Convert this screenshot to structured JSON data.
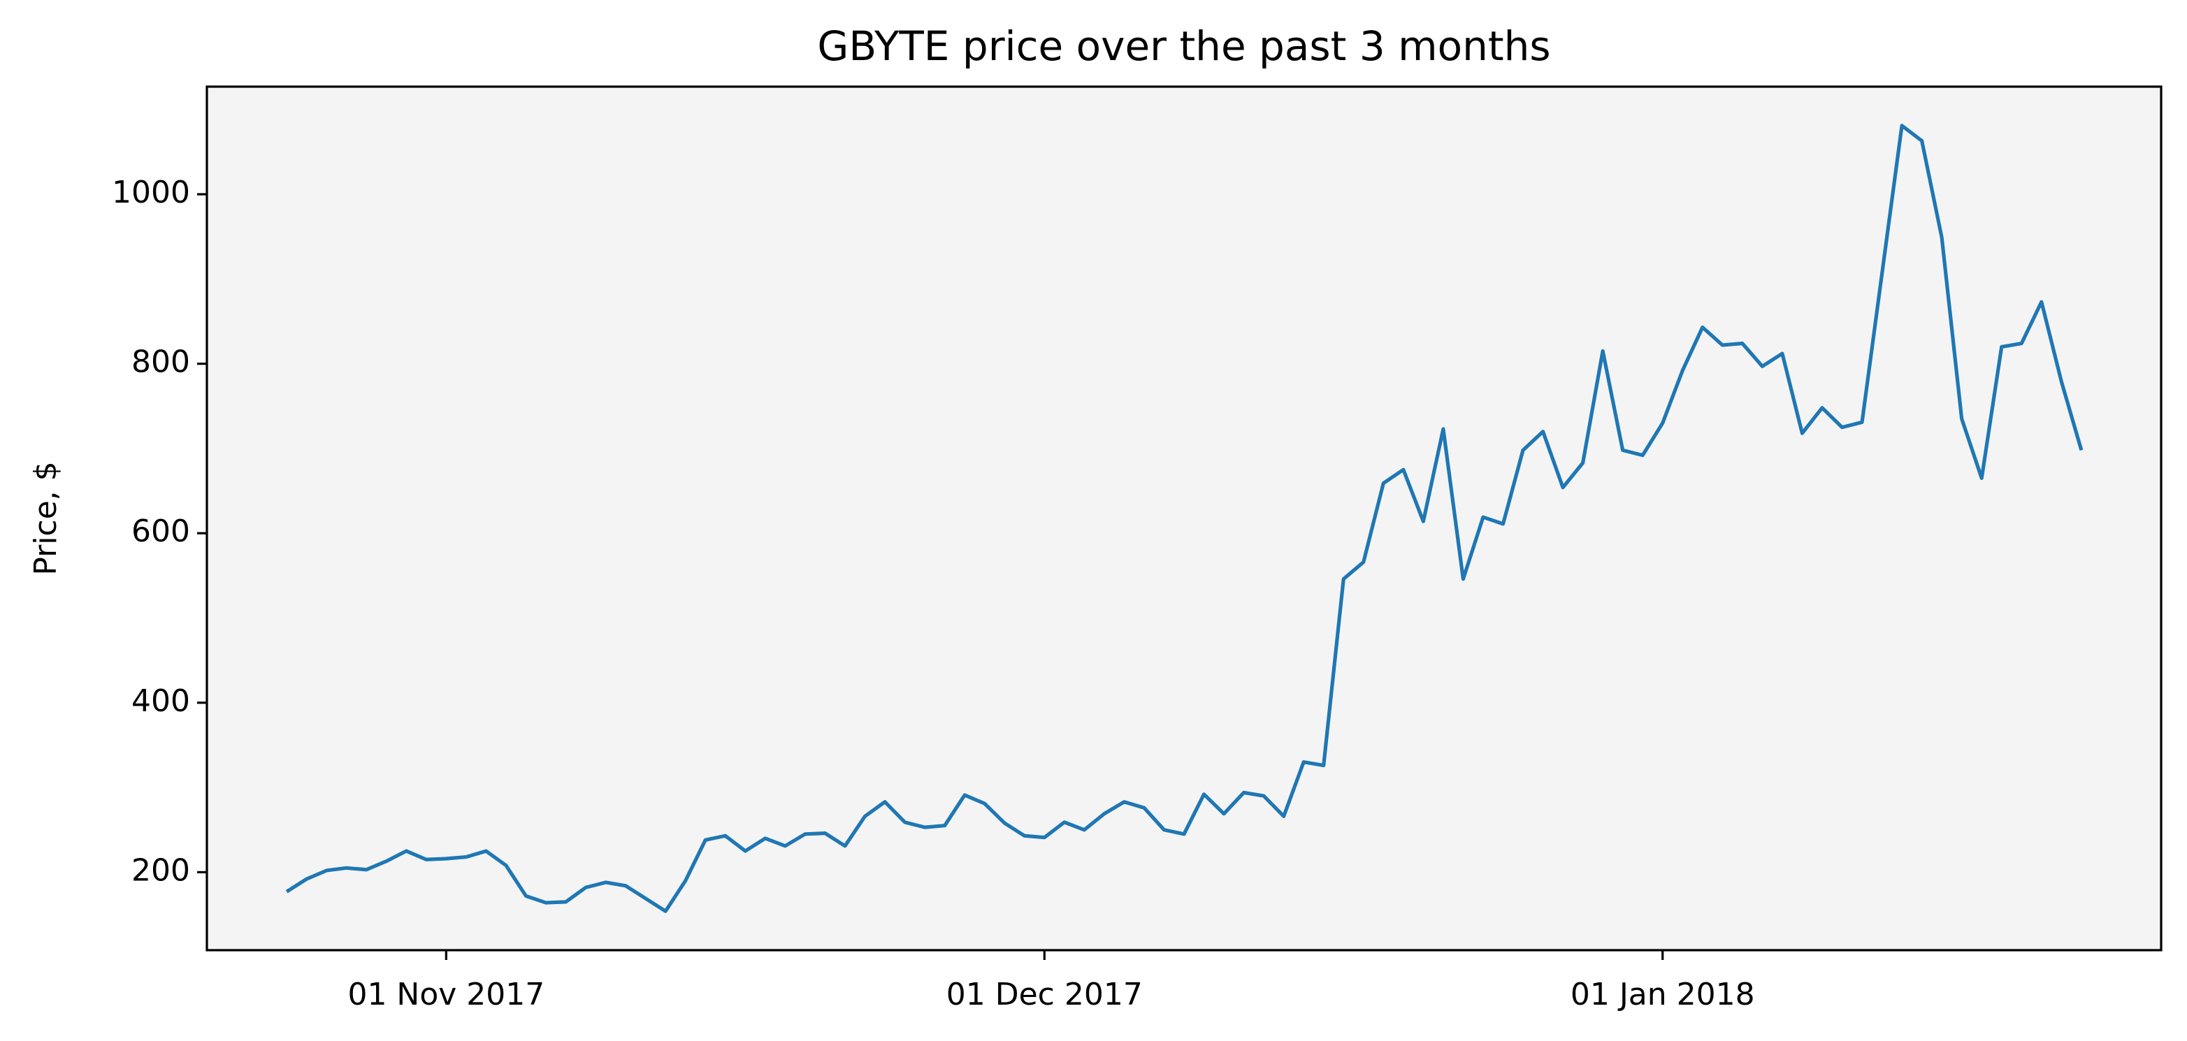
{
  "chart_data": {
    "type": "line",
    "title": "GBYTE price over the past 3 months",
    "ylabel": "Price, $",
    "x": [
      "2017-10-24",
      "2017-10-25",
      "2017-10-26",
      "2017-10-27",
      "2017-10-28",
      "2017-10-29",
      "2017-10-30",
      "2017-10-31",
      "2017-11-01",
      "2017-11-02",
      "2017-11-03",
      "2017-11-04",
      "2017-11-05",
      "2017-11-06",
      "2017-11-07",
      "2017-11-08",
      "2017-11-09",
      "2017-11-10",
      "2017-11-12",
      "2017-11-13",
      "2017-11-14",
      "2017-11-15",
      "2017-11-16",
      "2017-11-17",
      "2017-11-18",
      "2017-11-19",
      "2017-11-20",
      "2017-11-21",
      "2017-11-22",
      "2017-11-23",
      "2017-11-24",
      "2017-11-25",
      "2017-11-26",
      "2017-11-27",
      "2017-11-28",
      "2017-11-29",
      "2017-11-30",
      "2017-12-01",
      "2017-12-02",
      "2017-12-03",
      "2017-12-04",
      "2017-12-05",
      "2017-12-06",
      "2017-12-07",
      "2017-12-08",
      "2017-12-09",
      "2017-12-10",
      "2017-12-11",
      "2017-12-12",
      "2017-12-13",
      "2017-12-14",
      "2017-12-15",
      "2017-12-16",
      "2017-12-17",
      "2017-12-18",
      "2017-12-19",
      "2017-12-20",
      "2017-12-21",
      "2017-12-22",
      "2017-12-23",
      "2017-12-24",
      "2017-12-25",
      "2017-12-26",
      "2017-12-27",
      "2017-12-28",
      "2017-12-29",
      "2017-12-30",
      "2017-12-31",
      "2018-01-01",
      "2018-01-02",
      "2018-01-03",
      "2018-01-04",
      "2018-01-05",
      "2018-01-06",
      "2018-01-07",
      "2018-01-08",
      "2018-01-09",
      "2018-01-10",
      "2018-01-11",
      "2018-01-13",
      "2018-01-14",
      "2018-01-15",
      "2018-01-16",
      "2018-01-17",
      "2018-01-18",
      "2018-01-19",
      "2018-01-20",
      "2018-01-21",
      "2018-01-22"
    ],
    "series": [
      {
        "name": "GBYTE",
        "color": "#1f77b4",
        "values": [
          177,
          192,
          202,
          205,
          203,
          213,
          225,
          215,
          216,
          218,
          225,
          208,
          172,
          164,
          165,
          182,
          188,
          184,
          154,
          190,
          238,
          243,
          225,
          240,
          231,
          245,
          246,
          231,
          266,
          283,
          259,
          253,
          255,
          291,
          281,
          258,
          243,
          241,
          259,
          250,
          269,
          283,
          276,
          250,
          245,
          292,
          269,
          294,
          290,
          266,
          330,
          326,
          546,
          566,
          659,
          675,
          614,
          723,
          546,
          619,
          611,
          698,
          720,
          654,
          683,
          815,
          698,
          692,
          730,
          792,
          843,
          822,
          824,
          797,
          812,
          718,
          748,
          725,
          731,
          1081,
          1063,
          949,
          735,
          665,
          820,
          824,
          873,
          779,
          698
        ]
      }
    ],
    "xlim": [
      "2017-10-20",
      "2018-01-26"
    ],
    "xticks": [
      {
        "value": "2017-11-01",
        "label": "01 Nov 2017"
      },
      {
        "value": "2017-12-01",
        "label": "01 Dec 2017"
      },
      {
        "value": "2018-01-01",
        "label": "01 Jan 2018"
      }
    ],
    "ylim": [
      108,
      1127
    ],
    "yticks": [
      200,
      400,
      600,
      800,
      1000
    ],
    "background": "#f4f4f4"
  }
}
